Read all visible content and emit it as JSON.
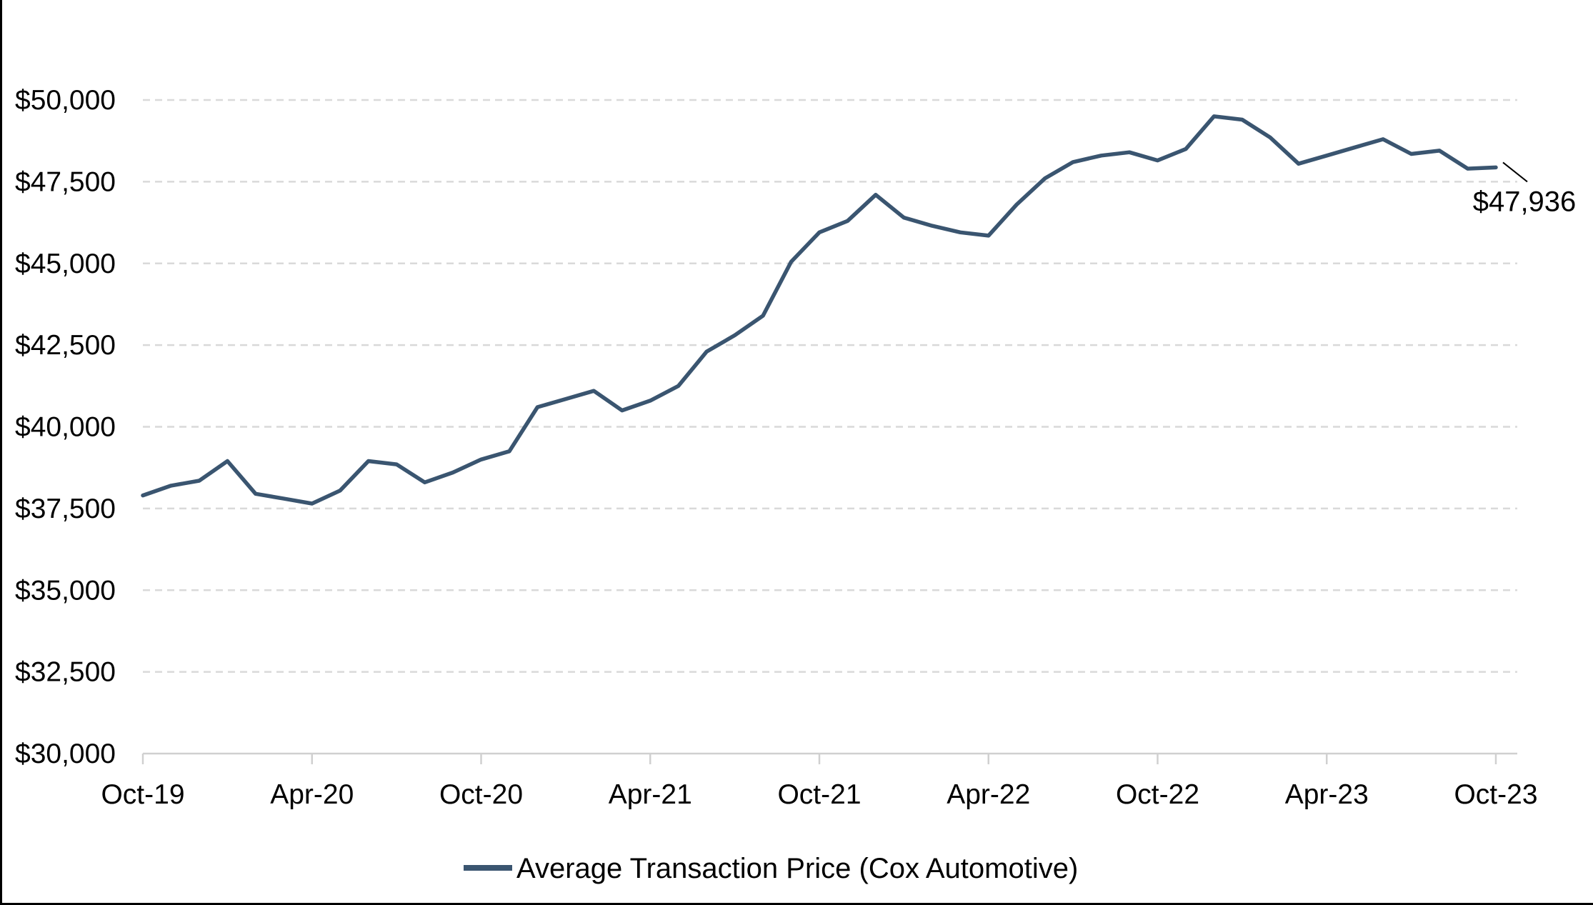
{
  "chart": {
    "end_label": "$47,936",
    "legend": {
      "label": "Average Transaction Price (Cox Automotive)"
    },
    "colors": {
      "line": "#3A5570",
      "gridline": "#D9D9D9",
      "axis": "#D0D0D0",
      "text": "#000000",
      "background": "#FFFFFF",
      "border": "#000000"
    }
  },
  "chart_data": {
    "type": "line",
    "title": "",
    "series": [
      {
        "name": "Average Transaction Price (Cox Automotive)",
        "values": [
          37900,
          38200,
          38350,
          38950,
          37950,
          37800,
          37650,
          38050,
          38950,
          38850,
          38300,
          38600,
          39000,
          39250,
          40600,
          40850,
          41100,
          40500,
          40800,
          41250,
          42300,
          42800,
          43400,
          45050,
          45950,
          46300,
          47100,
          46400,
          46150,
          45950,
          45850,
          46800,
          47600,
          48100,
          48300,
          48400,
          48150,
          48500,
          49500,
          49400,
          48850,
          48050,
          48300,
          48550,
          48800,
          48350,
          48450,
          47900,
          47936
        ]
      }
    ],
    "x": [
      "Oct-19",
      "Nov-19",
      "Dec-19",
      "Jan-20",
      "Feb-20",
      "Mar-20",
      "Apr-20",
      "May-20",
      "Jun-20",
      "Jul-20",
      "Aug-20",
      "Sep-20",
      "Oct-20",
      "Nov-20",
      "Dec-20",
      "Jan-21",
      "Feb-21",
      "Mar-21",
      "Apr-21",
      "May-21",
      "Jun-21",
      "Jul-21",
      "Aug-21",
      "Sep-21",
      "Oct-21",
      "Nov-21",
      "Dec-21",
      "Jan-22",
      "Feb-22",
      "Mar-22",
      "Apr-22",
      "May-22",
      "Jun-22",
      "Jul-22",
      "Aug-22",
      "Sep-22",
      "Oct-22",
      "Nov-22",
      "Dec-22",
      "Jan-23",
      "Feb-23",
      "Mar-23",
      "Apr-23",
      "May-23",
      "Jun-23",
      "Jul-23",
      "Aug-23",
      "Sep-23",
      "Oct-23"
    ],
    "x_tick_labels": [
      "Oct-19",
      "Apr-20",
      "Oct-20",
      "Apr-21",
      "Oct-21",
      "Apr-22",
      "Oct-22",
      "Apr-23",
      "Oct-23"
    ],
    "x_tick_every_months": 6,
    "ylim": [
      30000,
      50000
    ],
    "y_ticks": [
      30000,
      32500,
      35000,
      37500,
      40000,
      42500,
      45000,
      47500,
      50000
    ],
    "y_tick_format": "$#,##0",
    "grid": "horizontal-dashed",
    "legend_position": "bottom",
    "last_point_label": "$47,936"
  }
}
